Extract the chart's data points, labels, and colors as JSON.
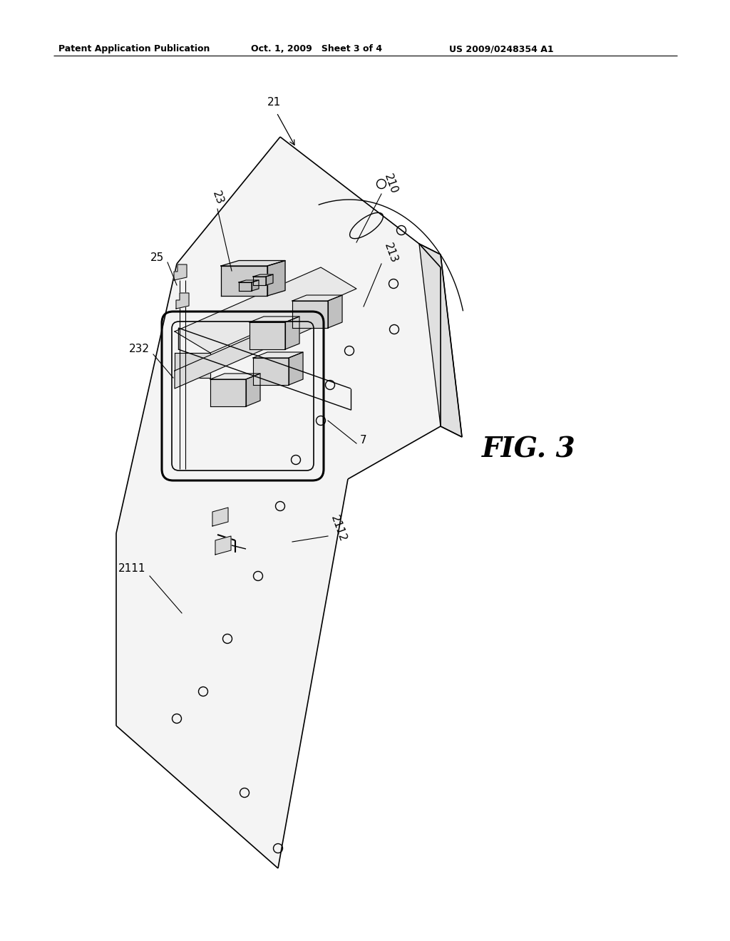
{
  "bg_color": "#ffffff",
  "line_color": "#000000",
  "header_left": "Patent Application Publication",
  "header_mid": "Oct. 1, 2009   Sheet 3 of 4",
  "header_right": "US 2009/0248354 A1",
  "fig_label": "FIG. 3",
  "header_fontsize": 9,
  "label_fontsize": 11,
  "fig_fontsize": 28
}
